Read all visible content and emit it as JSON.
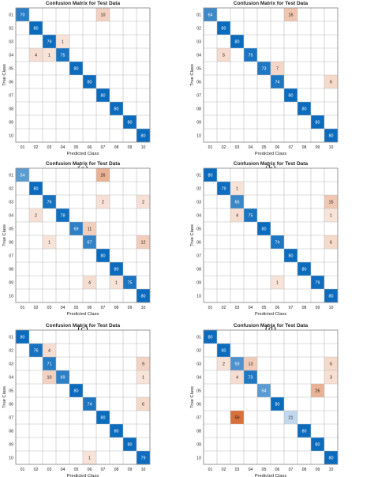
{
  "chart_data": [
    {
      "panel": "a",
      "type": "heatmap",
      "title": "Confusion Matrix for Test Data",
      "xlabel": "Predicted Class",
      "ylabel": "True Class",
      "categories": [
        "01",
        "02",
        "03",
        "04",
        "05",
        "06",
        "07",
        "08",
        "09",
        "10"
      ],
      "cells": [
        [
          1,
          1,
          70
        ],
        [
          1,
          7,
          10
        ],
        [
          2,
          2,
          80
        ],
        [
          3,
          3,
          79
        ],
        [
          3,
          4,
          1
        ],
        [
          4,
          2,
          4
        ],
        [
          4,
          3,
          1
        ],
        [
          4,
          4,
          75
        ],
        [
          5,
          5,
          80
        ],
        [
          6,
          6,
          80
        ],
        [
          7,
          7,
          80
        ],
        [
          8,
          8,
          80
        ],
        [
          9,
          9,
          80
        ],
        [
          10,
          10,
          80
        ]
      ]
    },
    {
      "panel": "b",
      "type": "heatmap",
      "title": "Confusion Matrix for Test Data",
      "xlabel": "Predicted Class",
      "ylabel": "True Class",
      "categories": [
        "01",
        "02",
        "03",
        "04",
        "05",
        "06",
        "07",
        "08",
        "09",
        "10"
      ],
      "cells": [
        [
          1,
          1,
          64
        ],
        [
          1,
          7,
          16
        ],
        [
          2,
          2,
          80
        ],
        [
          3,
          3,
          80
        ],
        [
          4,
          2,
          5
        ],
        [
          4,
          4,
          75
        ],
        [
          5,
          5,
          73
        ],
        [
          5,
          6,
          7
        ],
        [
          6,
          6,
          74
        ],
        [
          6,
          10,
          6
        ],
        [
          7,
          7,
          80
        ],
        [
          8,
          8,
          80
        ],
        [
          9,
          9,
          80
        ],
        [
          10,
          10,
          80
        ]
      ]
    },
    {
      "panel": "c",
      "type": "heatmap",
      "title": "Confusion Matrix for Test Data",
      "xlabel": "Predicted Class",
      "ylabel": "True Class",
      "categories": [
        "01",
        "02",
        "03",
        "04",
        "05",
        "06",
        "07",
        "08",
        "09",
        "10"
      ],
      "cells": [
        [
          1,
          1,
          54
        ],
        [
          1,
          7,
          26
        ],
        [
          2,
          2,
          80
        ],
        [
          3,
          3,
          76
        ],
        [
          3,
          7,
          2
        ],
        [
          3,
          10,
          2
        ],
        [
          4,
          2,
          2
        ],
        [
          4,
          4,
          78
        ],
        [
          5,
          5,
          69
        ],
        [
          5,
          6,
          11
        ],
        [
          6,
          3,
          1
        ],
        [
          6,
          6,
          67
        ],
        [
          6,
          10,
          12
        ],
        [
          7,
          7,
          80
        ],
        [
          8,
          8,
          80
        ],
        [
          9,
          6,
          4
        ],
        [
          9,
          8,
          1
        ],
        [
          9,
          9,
          75
        ],
        [
          10,
          10,
          80
        ]
      ]
    },
    {
      "panel": "d",
      "type": "heatmap",
      "title": "Confusion Matrix for Test Data",
      "xlabel": "Predicted Class",
      "ylabel": "True Class",
      "categories": [
        "01",
        "02",
        "03",
        "04",
        "05",
        "06",
        "07",
        "08",
        "09",
        "10"
      ],
      "cells": [
        [
          1,
          1,
          80
        ],
        [
          2,
          2,
          79
        ],
        [
          2,
          3,
          1
        ],
        [
          3,
          3,
          65
        ],
        [
          3,
          10,
          15
        ],
        [
          4,
          3,
          4
        ],
        [
          4,
          4,
          75
        ],
        [
          4,
          10,
          1
        ],
        [
          5,
          5,
          80
        ],
        [
          6,
          6,
          74
        ],
        [
          6,
          10,
          6
        ],
        [
          7,
          7,
          80
        ],
        [
          8,
          8,
          80
        ],
        [
          9,
          6,
          1
        ],
        [
          9,
          9,
          79
        ],
        [
          10,
          10,
          80
        ]
      ]
    },
    {
      "panel": "e",
      "type": "heatmap",
      "title": "Confusion Matrix for Test Data",
      "xlabel": "Predicted Class",
      "ylabel": "True Class",
      "categories": [
        "01",
        "02",
        "03",
        "04",
        "05",
        "06",
        "07",
        "08",
        "09",
        "10"
      ],
      "cells": [
        [
          1,
          1,
          80
        ],
        [
          2,
          2,
          76
        ],
        [
          2,
          3,
          4
        ],
        [
          3,
          3,
          71
        ],
        [
          3,
          10,
          9
        ],
        [
          4,
          3,
          10
        ],
        [
          4,
          4,
          69
        ],
        [
          4,
          10,
          1
        ],
        [
          5,
          5,
          80
        ],
        [
          6,
          6,
          74
        ],
        [
          6,
          10,
          6
        ],
        [
          7,
          7,
          80
        ],
        [
          8,
          8,
          80
        ],
        [
          9,
          9,
          80
        ],
        [
          10,
          6,
          1
        ],
        [
          10,
          10,
          79
        ]
      ]
    },
    {
      "panel": "f",
      "type": "heatmap",
      "title": "Confusion Matrix for Test Data",
      "xlabel": "Predicted Class",
      "ylabel": "True Class",
      "categories": [
        "01",
        "02",
        "03",
        "04",
        "05",
        "06",
        "07",
        "08",
        "09",
        "10"
      ],
      "cells": [
        [
          1,
          1,
          80
        ],
        [
          2,
          2,
          80
        ],
        [
          3,
          2,
          2
        ],
        [
          3,
          3,
          59
        ],
        [
          3,
          4,
          13
        ],
        [
          3,
          10,
          6
        ],
        [
          4,
          3,
          4
        ],
        [
          4,
          4,
          73
        ],
        [
          4,
          10,
          3
        ],
        [
          5,
          5,
          54
        ],
        [
          5,
          9,
          26
        ],
        [
          6,
          6,
          80
        ],
        [
          7,
          3,
          59
        ],
        [
          7,
          7,
          21
        ],
        [
          8,
          8,
          80
        ],
        [
          9,
          9,
          80
        ],
        [
          10,
          10,
          80
        ]
      ]
    }
  ],
  "panel_labels": [
    "(a)",
    "(b)",
    "(c)",
    "(d)",
    "(e)",
    "(f)"
  ],
  "colors": {
    "diag_max": "#0b6bbd",
    "off_max": "#d9703a",
    "grid": "#bcbcbc",
    "frame": "#888888"
  }
}
